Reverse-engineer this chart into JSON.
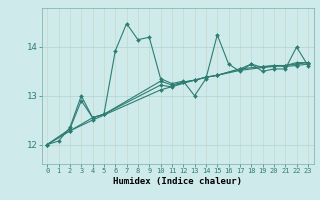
{
  "xlabel": "Humidex (Indice chaleur)",
  "bg_color": "#ceeaea",
  "grid_color": "#afd4d4",
  "line_color": "#2e7d72",
  "xlim": [
    -0.5,
    23.5
  ],
  "ylim": [
    11.6,
    14.8
  ],
  "yticks": [
    12,
    13,
    14
  ],
  "xticks": [
    0,
    1,
    2,
    3,
    4,
    5,
    6,
    7,
    8,
    9,
    10,
    11,
    12,
    13,
    14,
    15,
    16,
    17,
    18,
    19,
    20,
    21,
    22,
    23
  ],
  "series1": [
    [
      0,
      12.0
    ],
    [
      1,
      12.07
    ],
    [
      2,
      12.35
    ],
    [
      3,
      13.0
    ],
    [
      4,
      12.55
    ],
    [
      5,
      12.62
    ],
    [
      6,
      13.92
    ],
    [
      7,
      14.48
    ],
    [
      8,
      14.15
    ],
    [
      9,
      14.2
    ],
    [
      10,
      13.35
    ],
    [
      11,
      13.25
    ],
    [
      12,
      13.3
    ],
    [
      13,
      13.0
    ],
    [
      14,
      13.35
    ],
    [
      15,
      14.25
    ],
    [
      16,
      13.65
    ],
    [
      17,
      13.5
    ],
    [
      18,
      13.65
    ],
    [
      19,
      13.5
    ],
    [
      20,
      13.55
    ],
    [
      21,
      13.55
    ],
    [
      22,
      14.0
    ],
    [
      23,
      13.62
    ]
  ],
  "series2": [
    [
      0,
      12.0
    ],
    [
      2,
      12.32
    ],
    [
      3,
      12.9
    ],
    [
      4,
      12.55
    ],
    [
      5,
      12.62
    ],
    [
      10,
      13.3
    ],
    [
      11,
      13.22
    ],
    [
      12,
      13.28
    ],
    [
      13,
      13.32
    ],
    [
      14,
      13.38
    ],
    [
      15,
      13.42
    ],
    [
      17,
      13.55
    ],
    [
      18,
      13.65
    ],
    [
      19,
      13.58
    ],
    [
      20,
      13.62
    ],
    [
      21,
      13.6
    ],
    [
      22,
      13.62
    ],
    [
      23,
      13.65
    ]
  ],
  "series3": [
    [
      0,
      12.0
    ],
    [
      2,
      12.28
    ],
    [
      4,
      12.55
    ],
    [
      5,
      12.62
    ],
    [
      10,
      13.22
    ],
    [
      11,
      13.18
    ],
    [
      12,
      13.28
    ],
    [
      13,
      13.32
    ],
    [
      14,
      13.38
    ],
    [
      15,
      13.42
    ],
    [
      17,
      13.55
    ],
    [
      19,
      13.6
    ],
    [
      20,
      13.62
    ],
    [
      21,
      13.62
    ],
    [
      22,
      13.65
    ],
    [
      23,
      13.68
    ]
  ],
  "series4": [
    [
      0,
      12.0
    ],
    [
      2,
      12.28
    ],
    [
      4,
      12.5
    ],
    [
      10,
      13.12
    ],
    [
      13,
      13.32
    ],
    [
      14,
      13.38
    ],
    [
      15,
      13.42
    ],
    [
      17,
      13.52
    ],
    [
      19,
      13.58
    ],
    [
      21,
      13.62
    ],
    [
      22,
      13.68
    ],
    [
      23,
      13.68
    ]
  ]
}
